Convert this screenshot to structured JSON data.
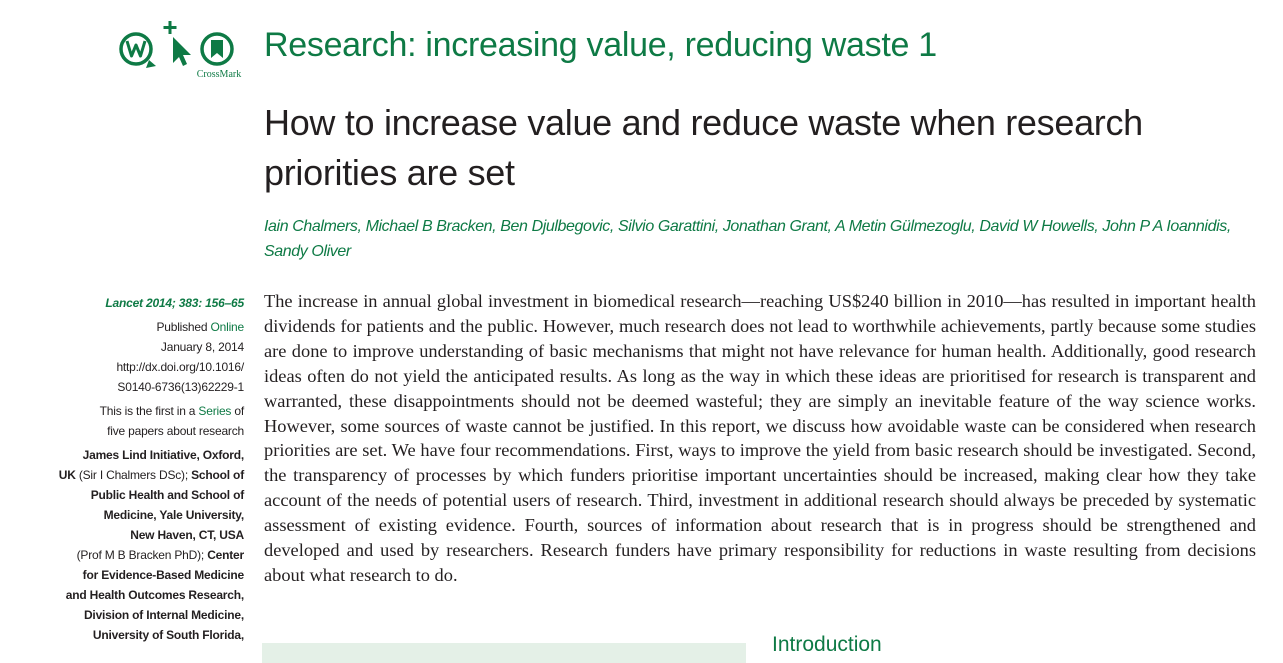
{
  "logo": {
    "crossmark_label": "CrossMark"
  },
  "series_title": "Research: increasing value, reducing waste 1",
  "title": "How to increase value and reduce waste when research priorities are set",
  "authors": "Iain Chalmers, Michael B Bracken, Ben Djulbegovic, Silvio Garattini, Jonathan Grant, A Metin Gülmezoglu, David W Howells, John P A Ioannidis, Sandy Oliver",
  "sidebar": {
    "citation": "Lancet 2014; 383: 156–65",
    "published_label": "Published",
    "published_online": "Online",
    "published_date": "January 8, 2014",
    "doi_1": "http://dx.doi.org/10.1016/",
    "doi_2": "S0140-6736(13)62229-1",
    "series_1": "This is the first in a",
    "series_link": "Series",
    "series_2": "of",
    "series_3": "five papers about research",
    "affiliations": [
      {
        "text": "James Lind Initiative, Oxford,",
        "bold": true
      },
      {
        "text": "UK",
        "bold": true
      },
      {
        "text": " (Sir I Chalmers DSc); ",
        "bold": false
      },
      {
        "text": "School of",
        "bold": true
      },
      {
        "text": "Public Health and School of",
        "bold": true
      },
      {
        "text": "Medicine, Yale University,",
        "bold": true
      },
      {
        "text": "New Haven, CT, USA",
        "bold": true
      },
      {
        "text": "(Prof M B Bracken PhD); ",
        "bold": false
      },
      {
        "text": "Center",
        "bold": true
      },
      {
        "text": "for Evidence-Based Medicine",
        "bold": true
      },
      {
        "text": "and Health Outcomes Research,",
        "bold": true
      },
      {
        "text": "Division of Internal Medicine,",
        "bold": true
      },
      {
        "text": "University of South Florida,",
        "bold": true
      }
    ]
  },
  "abstract": "The increase in annual global investment in biomedical research—reaching US$240 billion in 2010—has resulted in important health dividends for patients and the public. However, much research does not lead to worthwhile achievements, partly because some studies are done to improve understanding of basic mechanisms that might not have relevance for human health. Additionally, good research ideas often do not yield the anticipated results. As long as the way in which these ideas are prioritised for research is transparent and warranted, these disappointments should not be deemed wasteful; they are simply an inevitable feature of the way science works. However, some sources of waste cannot be justified. In this report, we discuss how avoidable waste can be considered when research priorities are set. We have four recommendations. First, ways to improve the yield from basic research should be investigated. Second, the transparency of processes by which funders prioritise important uncertainties should be increased, making clear how they take account of the needs of potential users of research. Third, investment in additional research should always be preceded by systematic assessment of existing evidence. Fourth, sources of information about research that is in progress should be strengthened and developed and used by researchers. Research funders have primary responsibility for reductions in waste resulting from decisions about what research to do.",
  "intro_heading": "Introduction",
  "colors": {
    "accent_green": "#0e7a45",
    "panel_green": "#e4f0e7",
    "text": "#231f20"
  },
  "icons": [
    "web-extra-icon",
    "cursor-icon",
    "crossmark-icon"
  ]
}
